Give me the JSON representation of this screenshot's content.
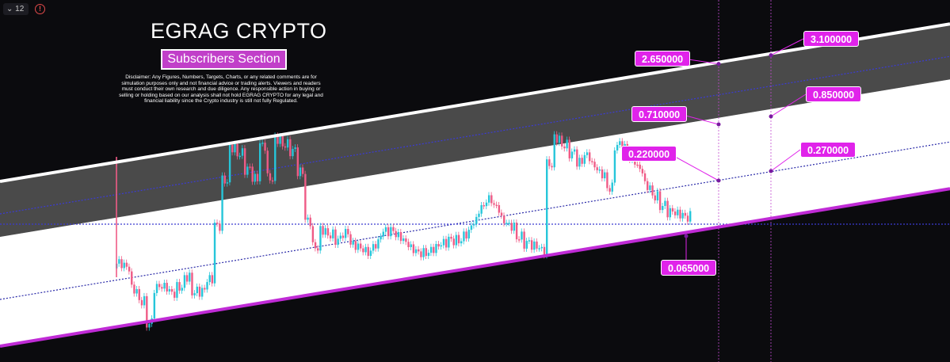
{
  "toolbar": {
    "interval": "12",
    "interval_chevron": "chevron-down-icon",
    "alert_icon": "alert-icon",
    "alert_glyph": "!"
  },
  "header": {
    "title": "EGRAG CRYPTO",
    "subtitle": "Subscribers Section",
    "disclaimer": "Disclaimer: Any Figures, Numbers, Targets, Charts, or any related comments are for simulation purposes only and not financial advice or trading alerts. Viewers and readers must conduct their own research and due diligence. Any responsible action in buying or selling or holding based on our analysis shall not hold EGRAG CRYPTO for any legal and financial liability since the Crypto industry is still not fully Regulated."
  },
  "chart_data": {
    "type": "candlestick",
    "y_scale": "log",
    "grid": false,
    "colors": {
      "up": "#26c6da",
      "down": "#ef5b86",
      "channel_upper_line": "#ffffff",
      "channel_lower_line": "#c02bd6",
      "label_bg": "#e023ea",
      "band_dark": "#4a4a4a",
      "band_light": "#ffffff"
    },
    "channel": {
      "lines": [
        "upper-boundary",
        "lower-boundary"
      ],
      "bands": [
        "upper-grey-band",
        "lower-white-band"
      ]
    },
    "price_series": [
      0.09,
      0.085,
      0.06,
      0.05,
      0.035,
      0.06,
      0.06,
      0.055,
      0.06,
      0.07,
      0.055,
      0.055,
      0.065,
      0.15,
      0.3,
      0.5,
      0.45,
      0.35,
      0.3,
      0.5,
      0.3,
      0.55,
      0.5,
      0.45,
      0.32,
      0.15,
      0.1,
      0.13,
      0.12,
      0.11,
      0.12,
      0.1,
      0.095,
      0.09,
      0.1,
      0.12,
      0.12,
      0.11,
      0.1,
      0.09,
      0.085,
      0.085,
      0.09,
      0.095,
      0.1,
      0.1,
      0.11,
      0.13,
      0.16,
      0.18,
      0.16,
      0.13,
      0.12,
      0.1,
      0.09,
      0.085,
      0.08,
      0.3,
      0.45,
      0.4,
      0.35,
      0.3,
      0.33,
      0.28,
      0.25,
      0.2,
      0.38,
      0.36,
      0.3,
      0.26,
      0.2,
      0.17,
      0.145,
      0.13,
      0.125,
      0.12,
      0.121
    ],
    "annotations": [
      {
        "id": "upper-line-a",
        "value": "2.650000"
      },
      {
        "id": "upper-line-b",
        "value": "3.100000"
      },
      {
        "id": "upper-mid-a",
        "value": "0.710000"
      },
      {
        "id": "upper-mid-b",
        "value": "0.850000"
      },
      {
        "id": "lower-mid-a",
        "value": "0.220000"
      },
      {
        "id": "lower-mid-b",
        "value": "0.270000"
      },
      {
        "id": "lower-line",
        "value": "0.065000"
      }
    ]
  }
}
